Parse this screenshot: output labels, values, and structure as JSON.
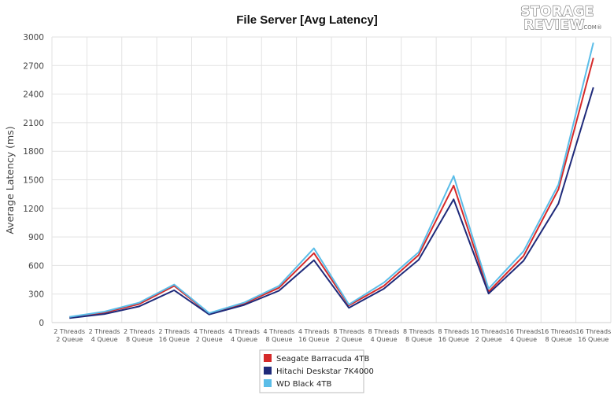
{
  "chart_data": {
    "type": "line",
    "title": "File Server [Avg Latency]",
    "ylabel": "Average Latency (ms)",
    "xlabel": "",
    "ylim": [
      0,
      3000
    ],
    "yticks": [
      0,
      300,
      600,
      900,
      1200,
      1500,
      1800,
      2100,
      2400,
      2700,
      3000
    ],
    "grid": true,
    "legend_position": "bottom-center",
    "categories": [
      [
        "2 Threads",
        "2 Queue"
      ],
      [
        "2 Threads",
        "4 Queue"
      ],
      [
        "2 Threads",
        "8 Queue"
      ],
      [
        "2 Threads",
        "16 Queue"
      ],
      [
        "4 Threads",
        "2 Queue"
      ],
      [
        "4 Threads",
        "4 Queue"
      ],
      [
        "4 Threads",
        "8 Queue"
      ],
      [
        "4 Threads",
        "16 Queue"
      ],
      [
        "8 Threads",
        "2 Queue"
      ],
      [
        "8 Threads",
        "4 Queue"
      ],
      [
        "8 Threads",
        "8 Queue"
      ],
      [
        "8 Threads",
        "16 Queue"
      ],
      [
        "16 Threads",
        "2 Queue"
      ],
      [
        "16 Threads",
        "4 Queue"
      ],
      [
        "16 Threads",
        "8 Queue"
      ],
      [
        "16 Threads",
        "16 Queue"
      ]
    ],
    "series": [
      {
        "name": "Seagate Barracuda 4TB",
        "color": "#d52a2a",
        "values": [
          55,
          105,
          195,
          385,
          95,
          200,
          365,
          730,
          180,
          385,
          710,
          1440,
          325,
          700,
          1400,
          2780
        ]
      },
      {
        "name": "Hitachi Deskstar 7K4000",
        "color": "#1f2a7a",
        "values": [
          48,
          90,
          170,
          340,
          85,
          185,
          335,
          655,
          155,
          355,
          660,
          1295,
          305,
          650,
          1250,
          2470
        ]
      },
      {
        "name": "WD Black 4TB",
        "color": "#5bbde8",
        "values": [
          60,
          115,
          210,
          400,
          100,
          210,
          385,
          780,
          190,
          420,
          740,
          1540,
          355,
          750,
          1450,
          2940
        ]
      }
    ]
  },
  "logo": {
    "line1": "STORAGE",
    "line2": "REVIEW",
    "suffix": ".COM®"
  }
}
